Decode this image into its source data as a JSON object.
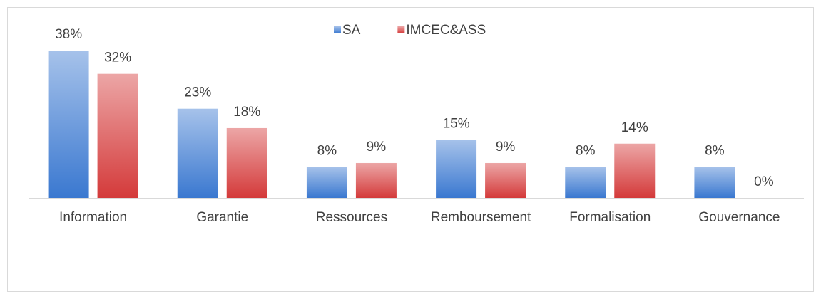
{
  "chart_data": {
    "type": "bar",
    "categories": [
      "Information",
      "Garantie",
      "Ressources",
      "Remboursement",
      "Formalisation",
      "Gouvernance"
    ],
    "series": [
      {
        "name": "SA",
        "color": "#3a78d0",
        "values": [
          38,
          23,
          8,
          15,
          8,
          8
        ],
        "value_labels": [
          "38%",
          "23%",
          "8%",
          "15%",
          "8%",
          "8%"
        ]
      },
      {
        "name": "IMCEC&ASS",
        "color": "#d43a3a",
        "values": [
          32,
          18,
          9,
          9,
          14,
          0
        ],
        "value_labels": [
          "32%",
          "18%",
          "9%",
          "9%",
          "14%",
          "0%"
        ]
      }
    ],
    "legend": "top"
  }
}
